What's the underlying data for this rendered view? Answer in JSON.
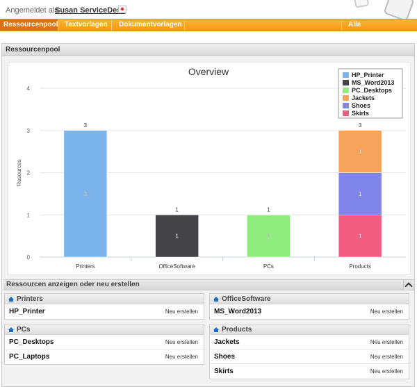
{
  "header": {
    "login_label": "Angemeldet als:",
    "user_name": "Susan ServiceDesk"
  },
  "nav": {
    "items": [
      {
        "label": "Ressourcenpool"
      },
      {
        "label": "Textvorlagen"
      },
      {
        "label": "Dokumentvorlagen"
      },
      {
        "label": "Alle Kundengruppen"
      }
    ]
  },
  "panel": {
    "title": "Ressourcenpool",
    "section_title": "Ressourcen anzeigen oder neu erstellen"
  },
  "chart_data": {
    "type": "bar",
    "title": "Overview",
    "ylabel": "Resources",
    "xlabel": "",
    "ylim": [
      0,
      4
    ],
    "yticks": [
      "0",
      "1",
      "2",
      "3",
      "4"
    ],
    "categories": [
      "Printers",
      "OfficeSoftware",
      "PCs",
      "Products"
    ],
    "series": [
      {
        "name": "HP_Printer",
        "color": "#7cb5ec",
        "values": [
          3,
          0,
          0,
          0
        ]
      },
      {
        "name": "MS_Word2013",
        "color": "#434348",
        "values": [
          0,
          1,
          0,
          0
        ]
      },
      {
        "name": "PC_Desktops",
        "color": "#90ed7d",
        "values": [
          0,
          0,
          1,
          0
        ]
      },
      {
        "name": "Skirts",
        "color": "#f15c80",
        "values": [
          0,
          0,
          0,
          1
        ]
      },
      {
        "name": "Shoes",
        "color": "#8085e9",
        "values": [
          0,
          0,
          0,
          1
        ]
      },
      {
        "name": "Jackets",
        "color": "#f7a35c",
        "values": [
          0,
          0,
          0,
          1
        ]
      }
    ],
    "totals": [
      "3",
      "1",
      "1",
      "3"
    ],
    "legend": [
      "HP_Printer",
      "MS_Word2013",
      "PC_Desktops",
      "Jackets",
      "Shoes",
      "Skirts"
    ],
    "legend_colors": [
      "#7cb5ec",
      "#434348",
      "#90ed7d",
      "#f7a35c",
      "#8085e9",
      "#f15c80"
    ],
    "legend_position": "top-right",
    "grid": true
  },
  "groups": [
    {
      "title": "Printers",
      "items": [
        {
          "name": "HP_Printer",
          "action": "Neu erstellen"
        }
      ]
    },
    {
      "title": "OfficeSoftware",
      "items": [
        {
          "name": "MS_Word2013",
          "action": "Neu erstellen"
        }
      ]
    },
    {
      "title": "PCs",
      "items": [
        {
          "name": "PC_Desktops",
          "action": "Neu erstellen"
        },
        {
          "name": "PC_Laptops",
          "action": "Neu erstellen"
        }
      ]
    },
    {
      "title": "Products",
      "items": [
        {
          "name": "Jackets",
          "action": "Neu erstellen"
        },
        {
          "name": "Shoes",
          "action": "Neu erstellen"
        },
        {
          "name": "Skirts",
          "action": "Neu erstellen"
        }
      ]
    }
  ],
  "icons": {
    "flag": "flag-icon",
    "group_header": "home-icon",
    "collapse": "chevron-up-icon"
  }
}
